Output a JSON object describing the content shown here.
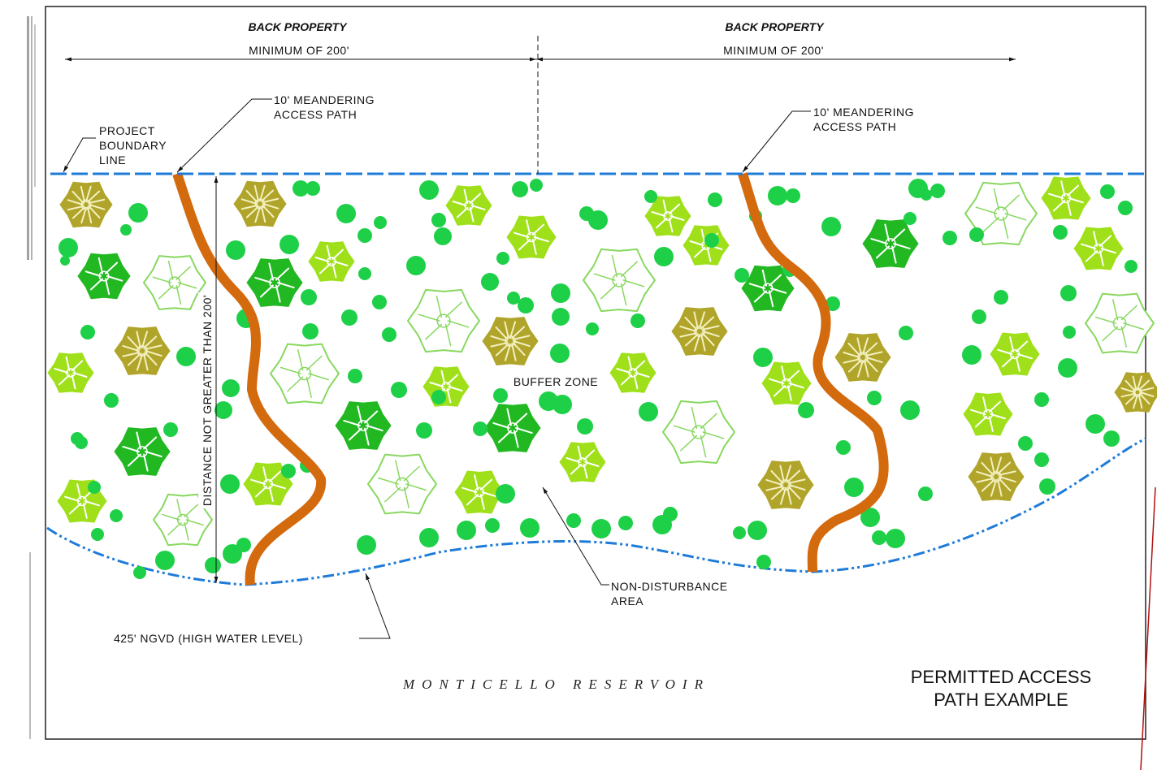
{
  "labels": {
    "back_property_left": "BACK PROPERTY",
    "back_property_right": "BACK PROPERTY",
    "minimum_left": "MINIMUM OF 200'",
    "minimum_right": "MINIMUM OF 200'",
    "path_left_line1": "10' MEANDERING",
    "path_left_line2": "ACCESS PATH",
    "path_right_line1": "10' MEANDERING",
    "path_right_line2": "ACCESS PATH",
    "boundary_line1": "PROJECT",
    "boundary_line2": "BOUNDARY",
    "boundary_line3": "LINE",
    "distance": "DISTANCE NOT GREATER THAN 200'",
    "buffer_zone": "BUFFER ZONE",
    "non_disturbance_line1": "NON-DISTURBANCE",
    "non_disturbance_line2": "AREA",
    "high_water": "425' NGVD (HIGH WATER LEVEL)",
    "reservoir": "MONTICELLO RESERVOIR",
    "title_line1": "PERMITTED ACCESS",
    "title_line2": "PATH EXAMPLE"
  },
  "colors": {
    "boundary": "#1e7bd8",
    "path": "#d46a0e",
    "tree_dark": "#22b822",
    "tree_lime": "#9fe01a",
    "tree_olive": "#b0a52a",
    "tree_outline": "#88d860",
    "shrub": "#1ed048"
  }
}
